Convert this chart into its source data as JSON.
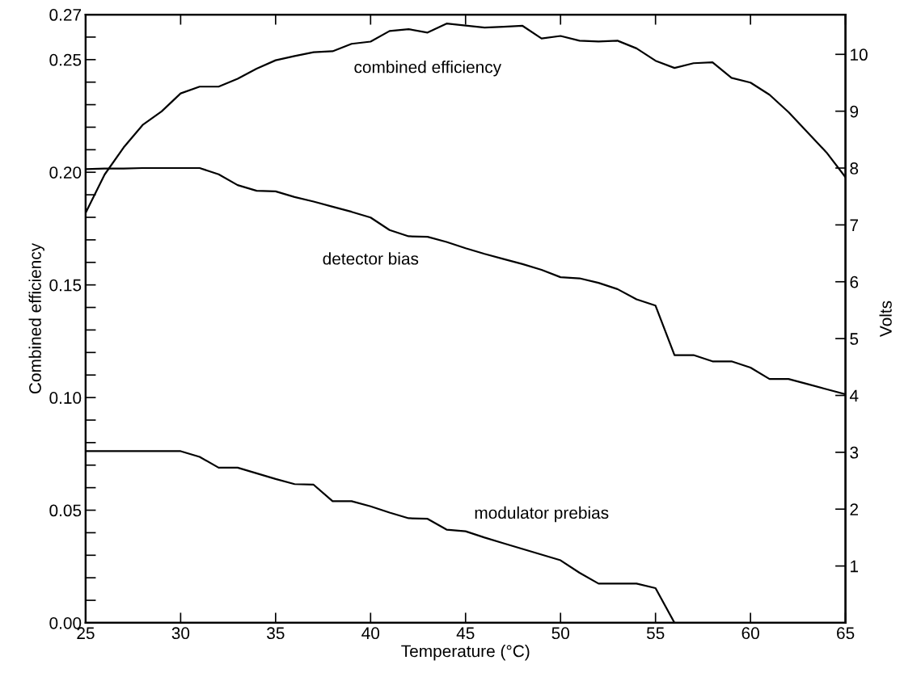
{
  "chart_data": {
    "type": "line",
    "xlabel": "Temperature (°C)",
    "ylabel": "Combined efficiency",
    "y2label": "Volts",
    "x": [
      25,
      26,
      27,
      28,
      29,
      30,
      31,
      32,
      33,
      34,
      35,
      36,
      37,
      38,
      39,
      40,
      41,
      42,
      43,
      44,
      45,
      46,
      47,
      48,
      49,
      50,
      51,
      52,
      53,
      54,
      55,
      56,
      57,
      58,
      59,
      60,
      61,
      62,
      63,
      64,
      65
    ],
    "xlim": [
      25,
      65
    ],
    "xticks": [
      25,
      30,
      35,
      40,
      45,
      50,
      55,
      60,
      65
    ],
    "ylim": [
      0,
      0.27
    ],
    "yticks": [
      {
        "value": 0,
        "label": "0.00"
      },
      {
        "value": 0.01,
        "label": null
      },
      {
        "value": 0.02,
        "label": null
      },
      {
        "value": 0.03,
        "label": null
      },
      {
        "value": 0.04,
        "label": null
      },
      {
        "value": 0.05,
        "label": "0.05"
      },
      {
        "value": 0.06,
        "label": null
      },
      {
        "value": 0.07,
        "label": null
      },
      {
        "value": 0.08,
        "label": null
      },
      {
        "value": 0.09,
        "label": null
      },
      {
        "value": 0.1,
        "label": "0.10"
      },
      {
        "value": 0.11,
        "label": null
      },
      {
        "value": 0.12,
        "label": null
      },
      {
        "value": 0.13,
        "label": null
      },
      {
        "value": 0.14,
        "label": null
      },
      {
        "value": 0.15,
        "label": "0.15"
      },
      {
        "value": 0.16,
        "label": null
      },
      {
        "value": 0.17,
        "label": null
      },
      {
        "value": 0.18,
        "label": null
      },
      {
        "value": 0.19,
        "label": null
      },
      {
        "value": 0.2,
        "label": "0.20"
      },
      {
        "value": 0.21,
        "label": null
      },
      {
        "value": 0.22,
        "label": null
      },
      {
        "value": 0.23,
        "label": null
      },
      {
        "value": 0.24,
        "label": null
      },
      {
        "value": 0.25,
        "label": "0.25"
      },
      {
        "value": 0.26,
        "label": null
      },
      {
        "value": 0.27,
        "label": "0.27"
      }
    ],
    "y2lim": [
      0,
      10.7
    ],
    "y2ticks": [
      1,
      2,
      3,
      4,
      5,
      6,
      7,
      8,
      9,
      10
    ],
    "grid": false,
    "legend": false,
    "marker": "none",
    "line_style": "solid",
    "series": [
      {
        "name": "combined efficiency",
        "color": "#000000",
        "values": [
          0.182,
          0.199,
          0.211,
          0.221,
          0.227,
          0.235,
          0.238,
          0.238,
          0.2415,
          0.246,
          0.2497,
          0.2516,
          0.2533,
          0.2537,
          0.257,
          0.258,
          0.2627,
          0.2635,
          0.262,
          0.266,
          0.2651,
          0.2642,
          0.2646,
          0.265,
          0.2594,
          0.2605,
          0.2584,
          0.258,
          0.2584,
          0.255,
          0.2495,
          0.2463,
          0.2484,
          0.2488,
          0.2419,
          0.2398,
          0.2344,
          0.2267,
          0.2177,
          0.2088,
          0.1978
        ]
      },
      {
        "name": "detector bias",
        "color": "#000000",
        "axis": "y2",
        "values": [
          7.98,
          7.99,
          7.99,
          8.0,
          8.0,
          8.0,
          8.0,
          7.89,
          7.7,
          7.6,
          7.59,
          7.49,
          7.41,
          7.32,
          7.23,
          7.13,
          6.91,
          6.8,
          6.79,
          6.7,
          6.59,
          6.49,
          6.4,
          6.31,
          6.21,
          6.08,
          6.06,
          5.98,
          5.87,
          5.69,
          5.58,
          4.71,
          4.71,
          4.6,
          4.6,
          4.49,
          4.29,
          4.29,
          4.2,
          4.11,
          4.02
        ]
      },
      {
        "name": "modulator prebias",
        "color": "#000000",
        "axis": "y2",
        "values": [
          3.02,
          3.02,
          3.02,
          3.02,
          3.02,
          3.02,
          2.92,
          2.73,
          2.73,
          2.63,
          2.53,
          2.44,
          2.43,
          2.14,
          2.14,
          2.05,
          1.94,
          1.84,
          1.83,
          1.64,
          1.61,
          1.5,
          1.4,
          1.3,
          1.2,
          1.1,
          0.88,
          0.69,
          0.69,
          0.69,
          0.61,
          0,
          null,
          null,
          null,
          null,
          null,
          null,
          null,
          null,
          null
        ]
      }
    ]
  }
}
